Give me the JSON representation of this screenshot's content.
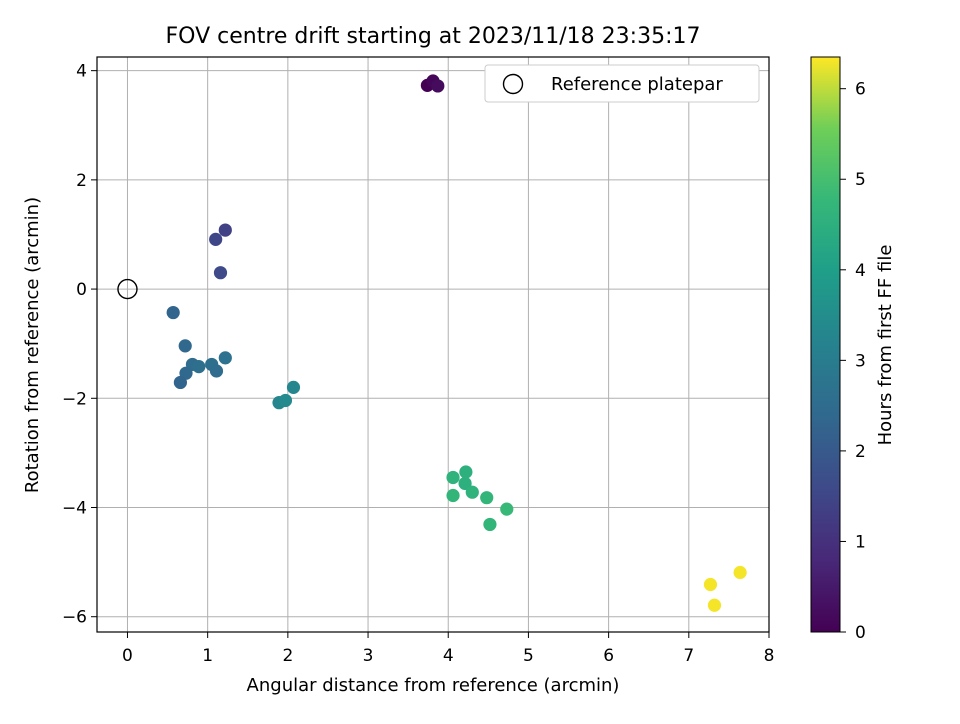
{
  "chart_data": {
    "type": "scatter",
    "title": "FOV centre drift starting at 2023/11/18 23:35:17",
    "xlabel": "Angular distance from reference (arcmin)",
    "ylabel": "Rotation from reference (arcmin)",
    "xlim": [
      -0.38,
      8.0
    ],
    "ylim": [
      -6.28,
      4.25
    ],
    "xticks": [
      0,
      1,
      2,
      3,
      4,
      5,
      6,
      7,
      8
    ],
    "yticks": [
      -6,
      -4,
      -2,
      0,
      2,
      4
    ],
    "xtick_labels": [
      "0",
      "1",
      "2",
      "3",
      "4",
      "5",
      "6",
      "7",
      "8"
    ],
    "ytick_labels": [
      "−6",
      "−4",
      "−2",
      "0",
      "2",
      "4"
    ],
    "grid": true,
    "legend": {
      "placement": "top-right",
      "entries": [
        "Reference platepar"
      ]
    },
    "reference_point": {
      "label": "Reference platepar",
      "x": 0.0,
      "y": 0.0
    },
    "colorbar": {
      "label": "Hours from first FF file",
      "range": [
        0,
        6.35
      ],
      "ticks": [
        0,
        1,
        2,
        3,
        4,
        5,
        6
      ],
      "tick_labels": [
        "0",
        "1",
        "2",
        "3",
        "4",
        "5",
        "6"
      ],
      "colormap": "viridis"
    },
    "points": [
      {
        "x": 3.74,
        "y": 3.73,
        "c": 0.0
      },
      {
        "x": 3.81,
        "y": 3.81,
        "c": 0.1
      },
      {
        "x": 3.87,
        "y": 3.72,
        "c": 0.2
      },
      {
        "x": 1.22,
        "y": 1.08,
        "c": 1.4
      },
      {
        "x": 1.1,
        "y": 0.91,
        "c": 1.5
      },
      {
        "x": 1.16,
        "y": 0.3,
        "c": 1.6
      },
      {
        "x": 0.57,
        "y": -0.43,
        "c": 2.3
      },
      {
        "x": 0.72,
        "y": -1.04,
        "c": 2.4
      },
      {
        "x": 0.81,
        "y": -1.38,
        "c": 2.5
      },
      {
        "x": 0.89,
        "y": -1.42,
        "c": 2.6
      },
      {
        "x": 0.73,
        "y": -1.54,
        "c": 2.4
      },
      {
        "x": 0.66,
        "y": -1.71,
        "c": 2.3
      },
      {
        "x": 1.05,
        "y": -1.38,
        "c": 2.6
      },
      {
        "x": 1.11,
        "y": -1.5,
        "c": 2.5
      },
      {
        "x": 1.22,
        "y": -1.26,
        "c": 2.7
      },
      {
        "x": 1.89,
        "y": -2.08,
        "c": 3.3
      },
      {
        "x": 1.97,
        "y": -2.04,
        "c": 3.4
      },
      {
        "x": 2.07,
        "y": -1.8,
        "c": 3.3
      },
      {
        "x": 4.06,
        "y": -3.45,
        "c": 4.6
      },
      {
        "x": 4.22,
        "y": -3.35,
        "c": 4.5
      },
      {
        "x": 4.21,
        "y": -3.56,
        "c": 4.5
      },
      {
        "x": 4.06,
        "y": -3.78,
        "c": 4.7
      },
      {
        "x": 4.3,
        "y": -3.72,
        "c": 4.6
      },
      {
        "x": 4.48,
        "y": -3.82,
        "c": 4.7
      },
      {
        "x": 4.73,
        "y": -4.03,
        "c": 4.8
      },
      {
        "x": 4.52,
        "y": -4.31,
        "c": 4.7
      },
      {
        "x": 7.27,
        "y": -5.41,
        "c": 6.3
      },
      {
        "x": 7.64,
        "y": -5.19,
        "c": 6.3
      },
      {
        "x": 7.32,
        "y": -5.79,
        "c": 6.3
      }
    ]
  }
}
